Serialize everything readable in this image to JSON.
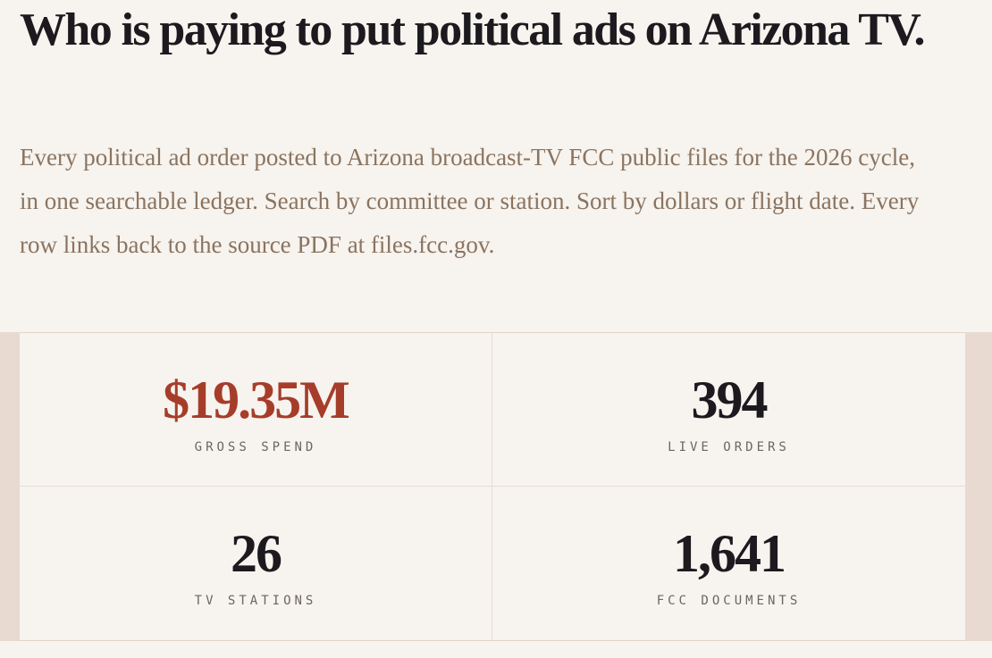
{
  "header": {
    "title": "Who is paying to put political ads on Arizona TV.",
    "subtitle": "Every political ad order posted to Arizona broadcast-TV FCC public files for the 2026 cycle, in one searchable ledger. Search by committee or station. Sort by dollars or flight date. Every row links back to the source PDF at files.fcc.gov."
  },
  "stats": [
    {
      "value": "$19.35M",
      "label": "GROSS SPEND"
    },
    {
      "value": "394",
      "label": "LIVE ORDERS"
    },
    {
      "value": "26",
      "label": "TV STATIONS"
    },
    {
      "value": "1,641",
      "label": "FCC DOCUMENTS"
    }
  ]
}
